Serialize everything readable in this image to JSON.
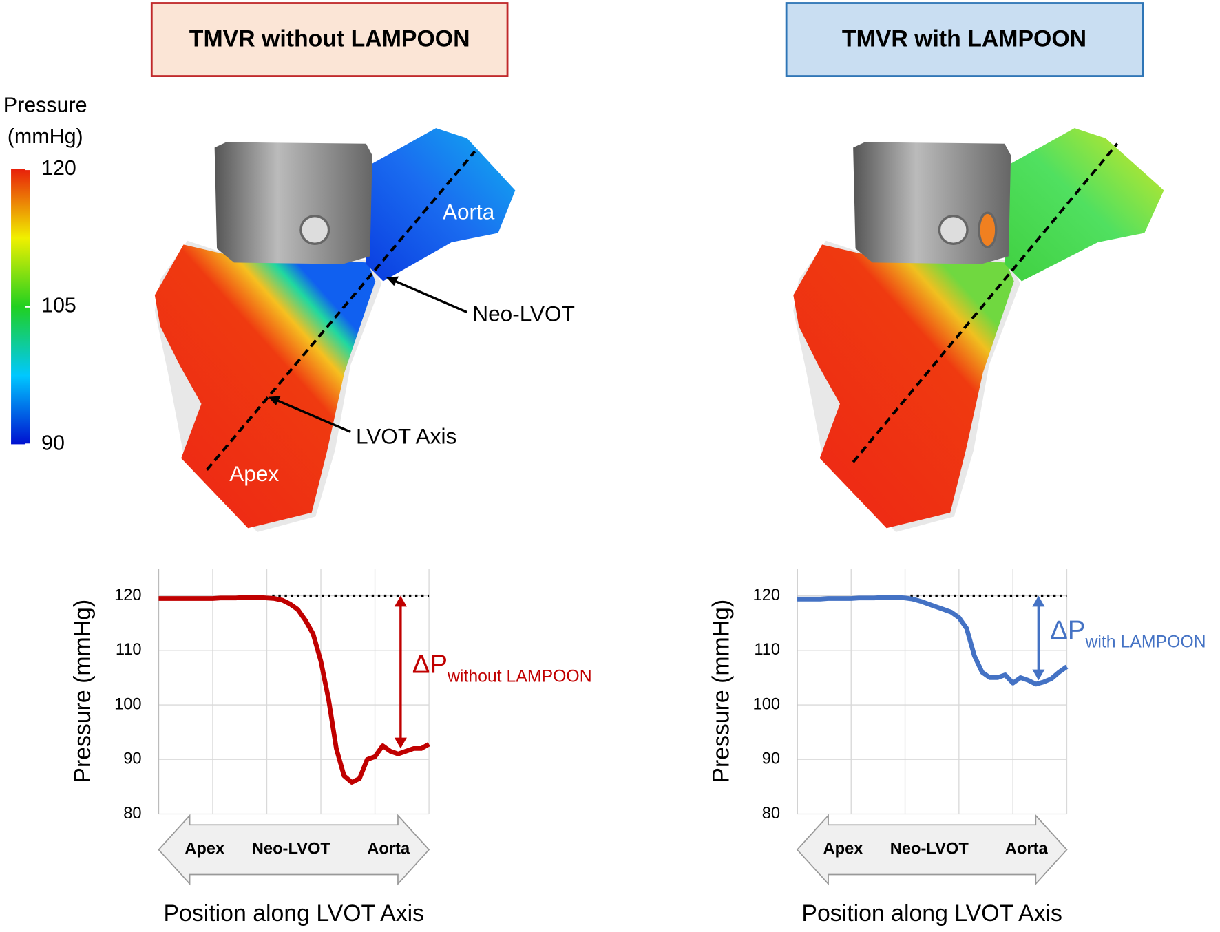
{
  "panels": [
    {
      "title": "TMVR without LAMPOON",
      "annotations": [
        "Aorta",
        "Apex",
        "Neo-LVOT",
        "LVOT Axis"
      ]
    },
    {
      "title": "TMVR with LAMPOON"
    }
  ],
  "colorbar": {
    "title": [
      "Pressure",
      "(mmHg)"
    ],
    "lim": [
      90,
      120
    ],
    "ticks": [
      90,
      105,
      120
    ]
  },
  "chart_data": [
    {
      "type": "line",
      "ylabel": "Pressure (mmHg)",
      "xlabel": "Position along LVOT Axis",
      "x_arrow_labels": [
        "Apex",
        "Neo-LVOT",
        "Aorta"
      ],
      "color": "#c00000",
      "values": [
        119.5,
        119.5,
        119.5,
        119.5,
        119.5,
        119.5,
        119.5,
        119.5,
        119.6,
        119.6,
        119.6,
        119.7,
        119.7,
        119.7,
        119.6,
        119.5,
        119.2,
        118.5,
        117.5,
        115.5,
        113,
        108,
        101,
        92,
        87,
        85.8,
        86.5,
        90,
        90.5,
        92.5,
        91.5,
        91,
        91.5,
        92,
        92,
        92.8
      ],
      "ylim": [
        80,
        125
      ],
      "yticks": [
        80,
        90,
        100,
        110,
        120
      ],
      "grid": true,
      "reference_value": 120,
      "delta_range": [
        120,
        92
      ],
      "delta_label": "ΔP",
      "delta_subscript": "without LAMPOON"
    },
    {
      "type": "line",
      "ylabel": "Pressure (mmHg)",
      "xlabel": "Position along LVOT Axis",
      "x_arrow_labels": [
        "Apex",
        "Neo-LVOT",
        "Aorta"
      ],
      "color": "#4472c4",
      "values": [
        119.4,
        119.4,
        119.4,
        119.4,
        119.5,
        119.5,
        119.5,
        119.5,
        119.6,
        119.6,
        119.6,
        119.7,
        119.7,
        119.7,
        119.6,
        119.4,
        119,
        118.5,
        118,
        117.5,
        117,
        116,
        114,
        109,
        106,
        105,
        105,
        105.5,
        104,
        105,
        104.5,
        103.8,
        104.2,
        104.8,
        106,
        107
      ],
      "ylim": [
        80,
        125
      ],
      "yticks": [
        80,
        90,
        100,
        110,
        120
      ],
      "grid": true,
      "reference_value": 120,
      "delta_range": [
        120,
        104.5
      ],
      "delta_label": "ΔP",
      "delta_subscript": "with LAMPOON"
    }
  ]
}
